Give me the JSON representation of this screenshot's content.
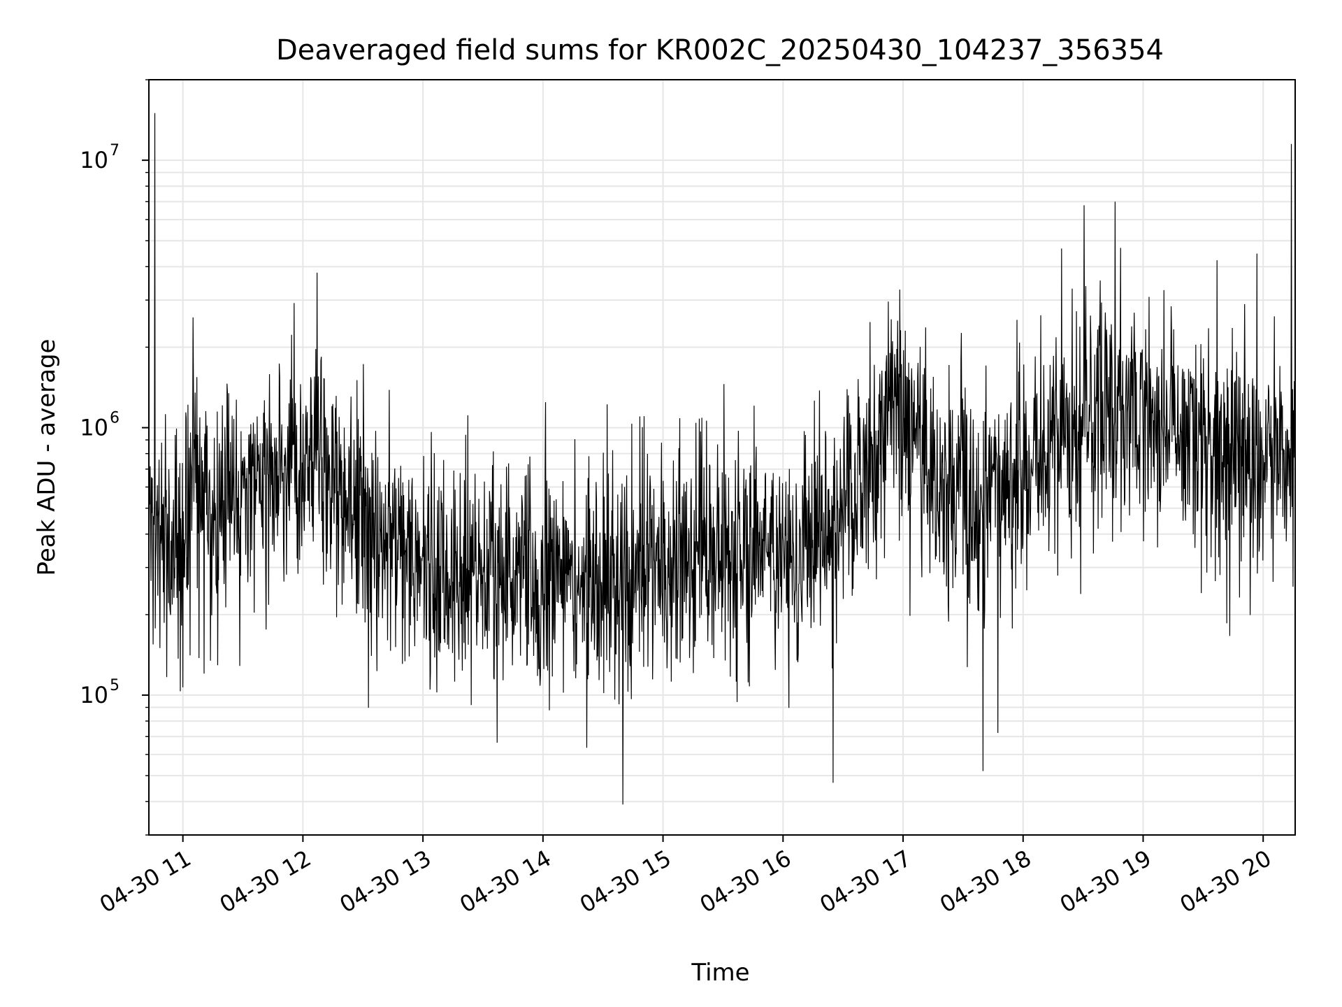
{
  "chart_data": {
    "type": "line",
    "title": "Deaveraged field sums for KR002C_20250430_104237_356354",
    "xlabel": "Time",
    "ylabel": "Peak ADU - average",
    "y_scale": "log",
    "grid": true,
    "line_color": "#000000",
    "x_tick_labels": [
      "04-30 11",
      "04-30 12",
      "04-30 13",
      "04-30 14",
      "04-30 15",
      "04-30 16",
      "04-30 17",
      "04-30 18",
      "04-30 19",
      "04-30 20"
    ],
    "y_tick_labels": [
      {
        "base": "10",
        "exp": "5",
        "value": 100000
      },
      {
        "base": "10",
        "exp": "6",
        "value": 1000000
      },
      {
        "base": "10",
        "exp": "7",
        "value": 10000000
      }
    ],
    "xlim": [
      "2025-04-30 10:43",
      "2025-04-30 20:16"
    ],
    "ylim": [
      30000,
      20000000
    ],
    "n_points": 2700,
    "trend": [
      {
        "x": "2025-04-30 10:43",
        "y": 450000
      },
      {
        "x": "2025-04-30 11:00",
        "y": 320000
      },
      {
        "x": "2025-04-30 11:05",
        "y": 700000
      },
      {
        "x": "2025-04-30 11:15",
        "y": 350000
      },
      {
        "x": "2025-04-30 11:20",
        "y": 550000
      },
      {
        "x": "2025-04-30 11:45",
        "y": 600000
      },
      {
        "x": "2025-04-30 12:05",
        "y": 900000
      },
      {
        "x": "2025-04-30 12:20",
        "y": 500000
      },
      {
        "x": "2025-04-30 12:40",
        "y": 420000
      },
      {
        "x": "2025-04-30 13:00",
        "y": 300000
      },
      {
        "x": "2025-04-30 14:00",
        "y": 280000
      },
      {
        "x": "2025-04-30 14:40",
        "y": 260000
      },
      {
        "x": "2025-04-30 15:00",
        "y": 320000
      },
      {
        "x": "2025-04-30 15:30",
        "y": 350000
      },
      {
        "x": "2025-04-30 16:00",
        "y": 320000
      },
      {
        "x": "2025-04-30 16:30",
        "y": 450000
      },
      {
        "x": "2025-04-30 16:55",
        "y": 1200000
      },
      {
        "x": "2025-04-30 17:20",
        "y": 600000
      },
      {
        "x": "2025-04-30 17:45",
        "y": 500000
      },
      {
        "x": "2025-04-30 18:15",
        "y": 900000
      },
      {
        "x": "2025-04-30 18:45",
        "y": 1300000
      },
      {
        "x": "2025-04-30 19:10",
        "y": 1100000
      },
      {
        "x": "2025-04-30 19:40",
        "y": 800000
      },
      {
        "x": "2025-04-30 20:16",
        "y": 750000
      }
    ],
    "notable_points": [
      {
        "x": "2025-04-30 10:46",
        "y": 15000000
      },
      {
        "x": "2025-04-30 12:07",
        "y": 3800000
      },
      {
        "x": "2025-04-30 14:40",
        "y": 39000
      },
      {
        "x": "2025-04-30 16:25",
        "y": 47000
      },
      {
        "x": "2025-04-30 17:40",
        "y": 52000
      },
      {
        "x": "2025-04-30 18:46",
        "y": 7000000
      },
      {
        "x": "2025-04-30 20:14",
        "y": 11500000
      }
    ]
  }
}
